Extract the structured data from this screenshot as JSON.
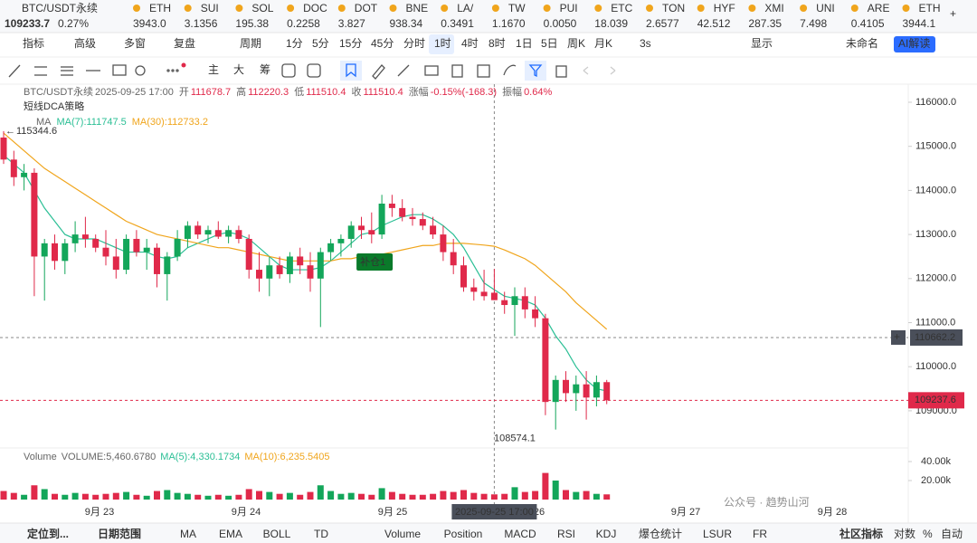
{
  "ticker_bar": {
    "main": {
      "name": "BTC/USDT永续",
      "price": "109233.7",
      "change": "0.27%"
    },
    "items": [
      {
        "name": "ETH",
        "price": "3943.0",
        "color": "#13a65a"
      },
      {
        "name": "SUI",
        "price": "3.1356",
        "color": "#e0294a"
      },
      {
        "name": "SOL",
        "price": "195.38",
        "color": "#13a65a"
      },
      {
        "name": "DOC",
        "price": "0.2258",
        "color": "#e0294a"
      },
      {
        "name": "DOT",
        "price": "3.827",
        "color": "#13a65a"
      },
      {
        "name": "BNE",
        "price": "938.34",
        "color": "#e0294a"
      },
      {
        "name": "LA/",
        "price": "0.3491",
        "color": "#13a65a"
      },
      {
        "name": "TW",
        "price": "1.1670",
        "color": "#13a65a"
      },
      {
        "name": "PUI",
        "price": "0.0050",
        "color": "#e0294a"
      },
      {
        "name": "ETC",
        "price": "18.039",
        "color": "#13a65a"
      },
      {
        "name": "TON",
        "price": "2.6577",
        "color": "#13a65a"
      },
      {
        "name": "HYF",
        "price": "42.512",
        "color": "#13a65a"
      },
      {
        "name": "XMI",
        "price": "287.35",
        "color": "#e0294a"
      },
      {
        "name": "UNI",
        "price": "7.498",
        "color": "#13a65a"
      },
      {
        "name": "ARE",
        "price": "0.4105",
        "color": "#e0294a"
      },
      {
        "name": "ETH",
        "price": "3944.1",
        "color": "#13a65a"
      }
    ]
  },
  "toolbar": {
    "items": [
      "指标",
      "高级",
      "多窗",
      "复盘",
      "周期",
      "1分",
      "5分",
      "15分",
      "45分",
      "分时",
      "1时",
      "4时",
      "8时",
      "1日",
      "5日",
      "周K",
      "月K",
      "3s",
      "显示",
      "未命名"
    ],
    "selected": 10,
    "ai_button": "AI解读"
  },
  "drawing_tools": {
    "labels": [
      "主",
      "大",
      "筹"
    ]
  },
  "chart_data": {
    "type": "candlestick",
    "info_line": [
      "BTC/USDT永续",
      "2025-09-25 17:00",
      "开",
      "111678.7",
      "高",
      "112220.3",
      "低",
      "111510.4",
      "收",
      "111510.4",
      "涨幅",
      "-0.15%(-168.3)",
      "振幅",
      "0.64%"
    ],
    "strategy": "短线DCA策略",
    "ma_legend": [
      "MA",
      "MA(7):111747.5",
      "MA(30):112733.2"
    ],
    "up_color": "#13a65a",
    "down_color": "#e0294a",
    "ohlc": [
      [
        115200,
        115344.6,
        114600,
        114700
      ],
      [
        114700,
        114900,
        114100,
        114300
      ],
      [
        114300,
        114600,
        114000,
        114400
      ],
      [
        114400,
        114500,
        111600,
        112500
      ],
      [
        112500,
        112900,
        111500,
        112800
      ],
      [
        112800,
        113000,
        112200,
        112400
      ],
      [
        112400,
        112900,
        112100,
        112800
      ],
      [
        112800,
        113300,
        112600,
        113000
      ],
      [
        113000,
        113400,
        112700,
        112900
      ],
      [
        112900,
        113000,
        112600,
        112700
      ],
      [
        112700,
        113100,
        112300,
        112500
      ],
      [
        112500,
        112900,
        112000,
        112200
      ],
      [
        112200,
        113000,
        112100,
        112900
      ],
      [
        112900,
        113100,
        112500,
        112600
      ],
      [
        112600,
        112900,
        112200,
        112700
      ],
      [
        112700,
        112800,
        111800,
        112100
      ],
      [
        112100,
        112600,
        111500,
        112500
      ],
      [
        112500,
        113100,
        112400,
        112900
      ],
      [
        112900,
        113300,
        112700,
        113200
      ],
      [
        113200,
        113300,
        112900,
        113000
      ],
      [
        113000,
        113200,
        112800,
        113100
      ],
      [
        113100,
        113300,
        112900,
        112950
      ],
      [
        112950,
        113200,
        112800,
        113100
      ],
      [
        113100,
        113200,
        112800,
        112900
      ],
      [
        112900,
        113000,
        112000,
        112200
      ],
      [
        112200,
        112600,
        111700,
        112000
      ],
      [
        112000,
        112500,
        111600,
        112300
      ],
      [
        112300,
        112500,
        112000,
        112100
      ],
      [
        112100,
        112600,
        111900,
        112500
      ],
      [
        112500,
        112700,
        112100,
        112300
      ],
      [
        112300,
        112600,
        111700,
        112000
      ],
      [
        112000,
        112700,
        110900,
        112600
      ],
      [
        112600,
        112900,
        112400,
        112800
      ],
      [
        112800,
        113000,
        112500,
        112900
      ],
      [
        112900,
        113300,
        112700,
        113200
      ],
      [
        113200,
        113400,
        112900,
        113100
      ],
      [
        113100,
        113500,
        112800,
        113000
      ],
      [
        113000,
        113900,
        112900,
        113700
      ],
      [
        113700,
        113900,
        113400,
        113600
      ],
      [
        113600,
        113800,
        113300,
        113400
      ],
      [
        113400,
        113600,
        113200,
        113350
      ],
      [
        113350,
        113500,
        113100,
        113200
      ],
      [
        113200,
        113400,
        112900,
        113000
      ],
      [
        113000,
        113200,
        112400,
        112600
      ],
      [
        112600,
        112900,
        112100,
        112300
      ],
      [
        112300,
        112500,
        111700,
        111800
      ],
      [
        111800,
        112000,
        111500,
        111700
      ],
      [
        111700,
        112200,
        111500,
        111600
      ],
      [
        111678.7,
        112220.3,
        111510.4,
        111510.4
      ],
      [
        111510,
        111700,
        111200,
        111400
      ],
      [
        111400,
        111800,
        110700,
        111600
      ],
      [
        111600,
        111800,
        111100,
        111300
      ],
      [
        111300,
        111600,
        110900,
        111100
      ],
      [
        111100,
        111200,
        108900,
        109200
      ],
      [
        109200,
        109800,
        108574.1,
        109700
      ],
      [
        109700,
        109900,
        109200,
        109400
      ],
      [
        109400,
        109800,
        109000,
        109600
      ],
      [
        109600,
        109900,
        108800,
        109300
      ],
      [
        109300,
        109800,
        109100,
        109650
      ],
      [
        109650,
        109700,
        109150,
        109237.6
      ]
    ],
    "series": [
      {
        "name": "MA(7)",
        "color": "#2bbf95",
        "values": [
          114800,
          114600,
          114400,
          114000,
          113600,
          113300,
          113000,
          112900,
          112900,
          112900,
          112800,
          112700,
          112600,
          112600,
          112600,
          112500,
          112450,
          112500,
          112700,
          112800,
          112900,
          113000,
          113050,
          113000,
          112900,
          112700,
          112500,
          112300,
          112200,
          112200,
          112200,
          112250,
          112400,
          112600,
          112800,
          113000,
          113050,
          113200,
          113300,
          113400,
          113450,
          113450,
          113350,
          113200,
          113000,
          112700,
          112300,
          111900,
          111747.5,
          111600,
          111550,
          111500,
          111400,
          111100,
          110700,
          110400,
          110000,
          109700,
          109500,
          109450
        ]
      },
      {
        "name": "MA(30)",
        "color": "#f0a51c",
        "values": [
          115300,
          115100,
          114900,
          114700,
          114500,
          114350,
          114200,
          114050,
          113900,
          113750,
          113600,
          113450,
          113300,
          113200,
          113100,
          113000,
          112950,
          112900,
          112850,
          112800,
          112750,
          112700,
          112700,
          112650,
          112600,
          112550,
          112500,
          112450,
          112400,
          112400,
          112400,
          112400,
          112400,
          112450,
          112450,
          112500,
          112500,
          112550,
          112600,
          112650,
          112700,
          112750,
          112750,
          112800,
          112800,
          112800,
          112780,
          112760,
          112733.2,
          112650,
          112550,
          112450,
          112300,
          112100,
          111900,
          111700,
          111450,
          111250,
          111050,
          110850
        ]
      }
    ],
    "ylim": [
      108500,
      116000
    ],
    "yticks": [
      {
        "value": 116000,
        "label": "116000.0"
      },
      {
        "value": 115000,
        "label": "115000.0"
      },
      {
        "value": 114000,
        "label": "114000.0"
      },
      {
        "value": 113000,
        "label": "113000.0"
      },
      {
        "value": 112000,
        "label": "112000.0"
      },
      {
        "value": 111000,
        "label": "111000.0"
      },
      {
        "value": 110000,
        "label": "110000.0"
      },
      {
        "value": 109000,
        "label": "109000.0"
      }
    ],
    "high_marker": 115344.6,
    "low_marker": 108574.1,
    "crosshair": {
      "index": 48,
      "price": 110662.2,
      "time_label": "2025-09-25 17:00"
    },
    "last_price": 109237.6,
    "signal": {
      "index": 37,
      "label": "补仓1"
    },
    "x_labels": [
      "9月 23",
      "9月 24",
      "9月 25",
      "26",
      "9月 27",
      "9月 28"
    ],
    "volume": {
      "legend": [
        "Volume",
        "VOLUME:5,460.6780",
        "MA(5):4,330.1734",
        "MA(10):6,235.5405"
      ],
      "values": [
        9000,
        7000,
        5000,
        15000,
        11000,
        6000,
        5000,
        7000,
        6000,
        5000,
        6000,
        7000,
        8000,
        5000,
        4000,
        9000,
        10000,
        7000,
        6000,
        5000,
        4000,
        5000,
        4000,
        5000,
        11000,
        9000,
        8000,
        6000,
        7000,
        5000,
        8000,
        15000,
        9000,
        6000,
        7000,
        6000,
        5000,
        12000,
        8000,
        6000,
        5000,
        5000,
        6000,
        9000,
        8000,
        10000,
        7000,
        6000,
        5460.678,
        6000,
        13000,
        8000,
        9000,
        28000,
        20000,
        10000,
        8000,
        9000,
        6000,
        5460.678
      ],
      "ylim": [
        0,
        40000
      ],
      "yticks": [
        {
          "value": 40000,
          "label": "40.00k"
        },
        {
          "value": 20000,
          "label": "20.00k"
        }
      ]
    }
  },
  "bottom_bar": {
    "left": [
      "定位到...",
      "日期范围"
    ],
    "indicators": [
      "MA",
      "EMA",
      "BOLL",
      "TD",
      "Volume",
      "Position",
      "MACD",
      "RSI",
      "KDJ",
      "爆仓统计",
      "LSUR",
      "FR"
    ],
    "active": 4,
    "right": [
      "社区指标",
      "对数",
      "%",
      "自动"
    ]
  },
  "watermark": "公众号 · 趋势山河"
}
